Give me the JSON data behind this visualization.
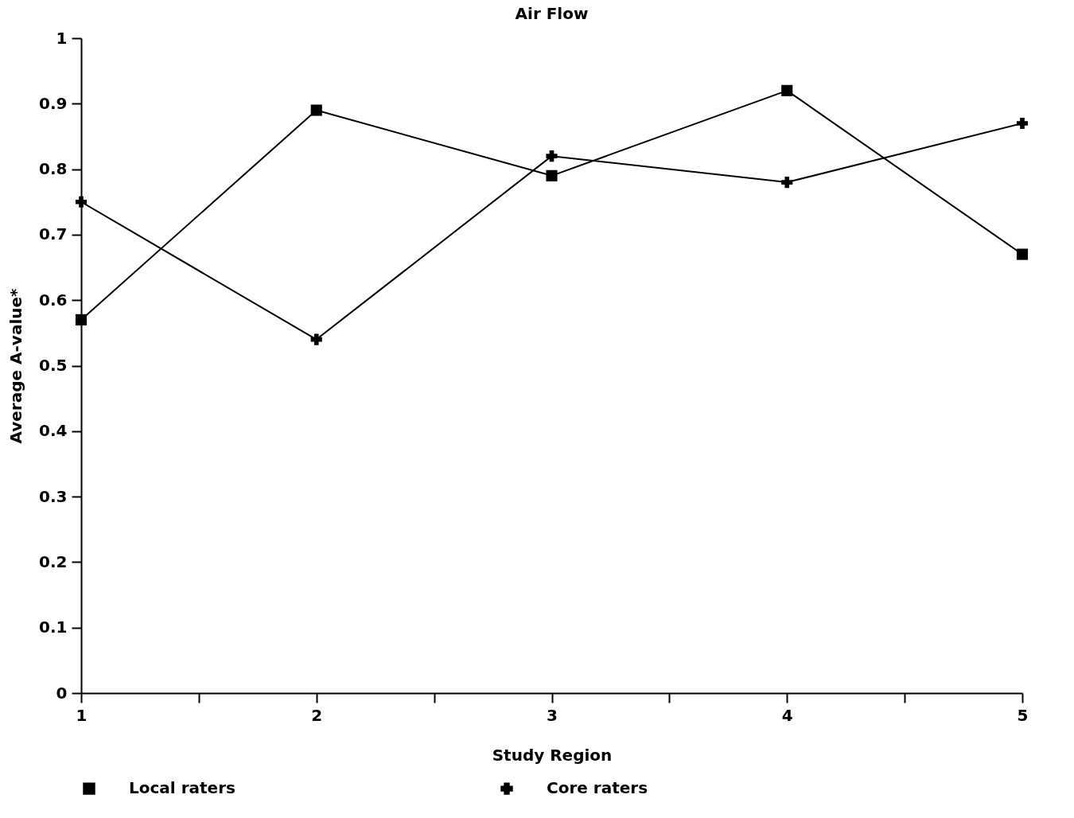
{
  "chart_data": {
    "type": "line",
    "title": "Air Flow",
    "xlabel": "Study Region",
    "ylabel": "Average A-value*",
    "x": [
      1,
      2,
      3,
      4,
      5
    ],
    "series": [
      {
        "name": "Local raters",
        "color": "#000000",
        "marker": "square",
        "values": [
          0.57,
          0.89,
          0.79,
          0.92,
          0.67
        ]
      },
      {
        "name": "Core raters",
        "color": "#000000",
        "marker": "cross",
        "values": [
          0.75,
          0.54,
          0.82,
          0.78,
          0.87
        ]
      }
    ],
    "xlim": [
      1,
      5
    ],
    "xticks": [
      1,
      {
        "value": 1.5,
        "label": null
      },
      2,
      {
        "value": 2.5,
        "label": null
      },
      3,
      {
        "value": 3.5,
        "label": null
      },
      4,
      {
        "value": 4.5,
        "label": null
      },
      5
    ],
    "ylim": [
      0,
      1
    ],
    "yticks": [
      0,
      0.1,
      0.2,
      0.3,
      0.4,
      0.5,
      0.6,
      0.7,
      0.8,
      0.9,
      1
    ],
    "grid": false,
    "legend": "bottom",
    "line_style": "solid"
  }
}
